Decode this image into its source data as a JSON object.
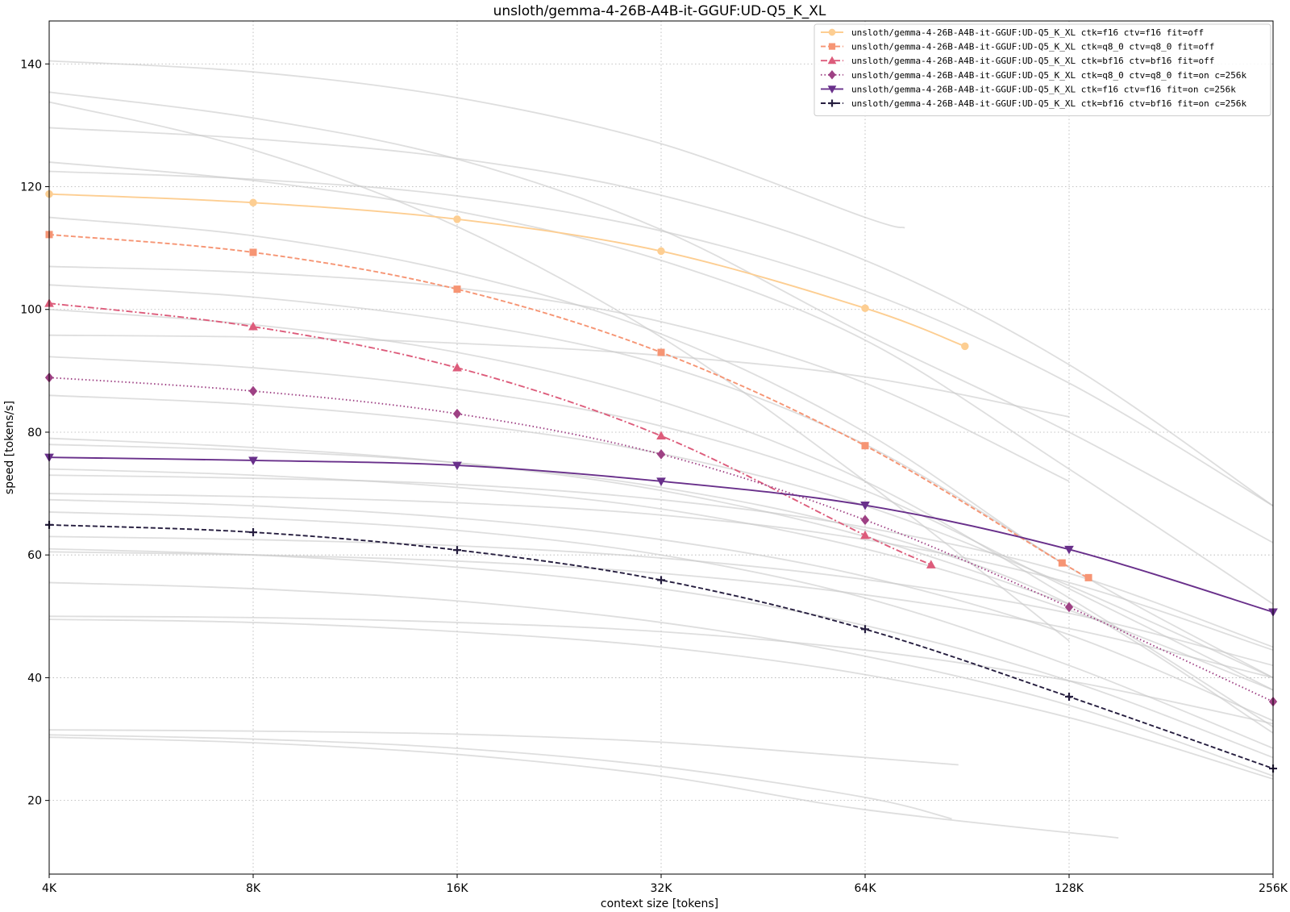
{
  "chart_data": {
    "type": "line",
    "title": "unsloth/gemma-4-26B-A4B-it-GGUF:UD-Q5_K_XL",
    "xlabel": "context size [tokens]",
    "ylabel": "speed [tokens/s]",
    "x_scale": "log2",
    "xlim": [
      4096,
      262144
    ],
    "ylim": [
      8,
      147
    ],
    "x_ticks": [
      {
        "value": 4096,
        "label": "4K"
      },
      {
        "value": 8192,
        "label": "8K"
      },
      {
        "value": 16384,
        "label": "16K"
      },
      {
        "value": 32768,
        "label": "32K"
      },
      {
        "value": 65536,
        "label": "64K"
      },
      {
        "value": 131072,
        "label": "128K"
      },
      {
        "value": 262144,
        "label": "256K"
      }
    ],
    "y_ticks": [
      20,
      40,
      60,
      80,
      100,
      120,
      140
    ],
    "grid": true,
    "legend_position": "top-right",
    "series": [
      {
        "name": "unsloth/gemma-4-26B-A4B-it-GGUF:UD-Q5_K_XL ctk=f16  ctv=f16  fit=off",
        "color": "#fdce92",
        "dash": "solid",
        "marker": "circle",
        "x": [
          4096,
          8192,
          16384,
          32768,
          65536,
          92000
        ],
        "y": [
          118.8,
          117.4,
          114.7,
          109.5,
          100.2,
          94.0
        ]
      },
      {
        "name": "unsloth/gemma-4-26B-A4B-it-GGUF:UD-Q5_K_XL ctk=q8_0 ctv=q8_0 fit=off",
        "color": "#f69574",
        "dash": "dashed",
        "marker": "square",
        "x": [
          4096,
          8192,
          16384,
          32768,
          65536,
          128000,
          140000
        ],
        "y": [
          112.2,
          109.3,
          103.3,
          93.0,
          77.8,
          58.7,
          56.3
        ]
      },
      {
        "name": "unsloth/gemma-4-26B-A4B-it-GGUF:UD-Q5_K_XL ctk=bf16 ctv=bf16 fit=off",
        "color": "#dd5c7b",
        "dash": "dashdot",
        "marker": "triangle-up",
        "x": [
          4096,
          8192,
          16384,
          32768,
          65536,
          82000
        ],
        "y": [
          101.0,
          97.2,
          90.5,
          79.4,
          63.2,
          58.4
        ]
      },
      {
        "name": "unsloth/gemma-4-26B-A4B-it-GGUF:UD-Q5_K_XL ctk=q8_0 ctv=q8_0 fit=on  c=256k",
        "color": "#9e4184",
        "dash": "dotted",
        "marker": "diamond",
        "x": [
          4096,
          8192,
          16384,
          32768,
          65536,
          131072,
          262144
        ],
        "y": [
          88.9,
          86.7,
          83.0,
          76.4,
          65.7,
          51.5,
          36.1
        ]
      },
      {
        "name": "unsloth/gemma-4-26B-A4B-it-GGUF:UD-Q5_K_XL ctk=f16  ctv=f16  fit=on  c=256k",
        "color": "#69308b",
        "dash": "solid",
        "marker": "triangle-down",
        "x": [
          4096,
          8192,
          16384,
          32768,
          65536,
          131072,
          262144
        ],
        "y": [
          75.9,
          75.4,
          74.6,
          72.0,
          68.1,
          60.9,
          50.7
        ]
      },
      {
        "name": "unsloth/gemma-4-26B-A4B-it-GGUF:UD-Q5_K_XL ctk=bf16 ctv=bf16 fit=on  c=256k",
        "color": "#261e3f",
        "dash": "dashed",
        "marker": "plus",
        "x": [
          4096,
          8192,
          16384,
          32768,
          65536,
          131072,
          262144
        ],
        "y": [
          64.9,
          63.7,
          60.8,
          55.9,
          47.9,
          36.9,
          25.2
        ]
      }
    ],
    "background_series": [
      {
        "x": [
          4096,
          8192,
          16384,
          32768,
          65536,
          75000
        ],
        "y": [
          140.5,
          138.7,
          134.5,
          127.0,
          115.0,
          113.3
        ]
      },
      {
        "x": [
          4096,
          8192,
          16384,
          32768,
          65536,
          131072,
          262144
        ],
        "y": [
          135.4,
          131.2,
          124.5,
          113.0,
          96.0,
          80.0,
          62.0
        ]
      },
      {
        "x": [
          4096,
          8192,
          16384,
          32768,
          65536,
          131072
        ],
        "y": [
          133.8,
          126.0,
          113.5,
          95.5,
          72.0,
          46.0
        ]
      },
      {
        "x": [
          4096,
          8192,
          16384,
          32768,
          65536,
          131072,
          262144
        ],
        "y": [
          129.6,
          127.8,
          124.6,
          118.6,
          108.0,
          91.0,
          68.0
        ]
      },
      {
        "x": [
          4096,
          8192,
          16384,
          32768,
          65536,
          131072,
          262144
        ],
        "y": [
          124.0,
          121.0,
          116.0,
          108.0,
          95.0,
          74.0,
          52.0
        ]
      },
      {
        "x": [
          4096,
          8192,
          16384,
          32768,
          65536,
          131072,
          262144
        ],
        "y": [
          122.5,
          121.2,
          118.5,
          112.8,
          103.0,
          88.0,
          68.0
        ]
      },
      {
        "x": [
          4096,
          8192,
          16384,
          32768,
          65536,
          131072,
          262144
        ],
        "y": [
          115.0,
          112.0,
          106.0,
          96.0,
          80.0,
          58.0,
          40.0
        ]
      },
      {
        "x": [
          4096,
          8192,
          16384,
          32768,
          65536,
          131072
        ],
        "y": [
          107.0,
          106.0,
          103.5,
          98.0,
          88.0,
          72.0
        ]
      },
      {
        "x": [
          4096,
          8192,
          16384,
          32768,
          65536,
          131072
        ],
        "y": [
          104.0,
          102.0,
          98.0,
          91.0,
          78.0,
          58.0
        ]
      },
      {
        "x": [
          4096,
          8192,
          16384,
          32768,
          65536,
          131072,
          262144
        ],
        "y": [
          100.0,
          97.5,
          93.0,
          85.0,
          72.0,
          53.0,
          32.0
        ]
      },
      {
        "x": [
          4096,
          8192,
          16384,
          32768,
          65536,
          131072
        ],
        "y": [
          95.8,
          95.5,
          94.5,
          92.5,
          89.0,
          82.5
        ]
      },
      {
        "x": [
          4096,
          8192,
          16384,
          32768,
          65536,
          131072,
          262144
        ],
        "y": [
          92.3,
          90.5,
          87.0,
          81.0,
          70.5,
          54.5,
          38.0
        ]
      },
      {
        "x": [
          4096,
          8192,
          16384,
          32768,
          65536,
          131072,
          262144
        ],
        "y": [
          86.0,
          84.5,
          81.5,
          76.5,
          68.0,
          55.0,
          40.0
        ]
      },
      {
        "x": [
          4096,
          8192,
          16384,
          32768,
          65536,
          131072
        ],
        "y": [
          79.0,
          77.5,
          75.0,
          70.5,
          63.0,
          52.0
        ]
      },
      {
        "x": [
          4096,
          8192,
          16384,
          32768,
          65536,
          131072,
          262144
        ],
        "y": [
          78.0,
          77.0,
          75.0,
          71.0,
          64.0,
          52.0,
          31.0
        ]
      },
      {
        "x": [
          4096,
          8192,
          16384,
          32768,
          65536,
          131072,
          262144
        ],
        "y": [
          74.0,
          73.0,
          71.0,
          67.5,
          61.0,
          51.0,
          38.0
        ]
      },
      {
        "x": [
          4096,
          8192,
          16384,
          32768,
          65536,
          131072,
          262144
        ],
        "y": [
          73.0,
          72.5,
          71.5,
          69.0,
          64.5,
          57.0,
          45.0
        ]
      },
      {
        "x": [
          4096,
          8192,
          16384,
          32768,
          65536,
          131072,
          262144
        ],
        "y": [
          70.0,
          69.5,
          68.5,
          66.5,
          62.5,
          55.5,
          44.5
        ]
      },
      {
        "x": [
          4096,
          8192,
          16384,
          32768,
          65536,
          131072,
          262144
        ],
        "y": [
          69.0,
          68.0,
          66.0,
          62.5,
          56.5,
          47.0,
          33.0
        ]
      },
      {
        "x": [
          4096,
          8192,
          16384,
          32768,
          65536,
          131072,
          262144
        ],
        "y": [
          67.0,
          66.0,
          64.0,
          60.0,
          53.0,
          42.0,
          28.5
        ]
      },
      {
        "x": [
          4096,
          8192,
          16384,
          32768,
          65536,
          131072,
          262144
        ],
        "y": [
          63.0,
          62.5,
          61.5,
          59.5,
          56.0,
          50.5,
          42.0
        ]
      },
      {
        "x": [
          4096,
          8192,
          16384,
          32768,
          65536,
          131072,
          262144
        ],
        "y": [
          61.0,
          60.0,
          58.0,
          54.5,
          48.5,
          39.5,
          27.0
        ]
      },
      {
        "x": [
          4096,
          8192,
          16384,
          32768,
          65536,
          131072,
          262144
        ],
        "y": [
          60.5,
          60.0,
          59.0,
          57.0,
          53.5,
          48.0,
          40.0
        ]
      },
      {
        "x": [
          4096,
          8192,
          16384,
          32768,
          65536,
          131072,
          262144
        ],
        "y": [
          55.5,
          54.5,
          52.5,
          49.0,
          43.5,
          35.5,
          24.0
        ]
      },
      {
        "x": [
          4096,
          8192,
          16384,
          32768,
          65536,
          131072,
          262144
        ],
        "y": [
          50.0,
          49.8,
          49.0,
          47.5,
          44.5,
          39.5,
          32.5
        ]
      },
      {
        "x": [
          4096,
          8192,
          16384,
          32768,
          65536,
          131072,
          262144
        ],
        "y": [
          49.5,
          49.0,
          47.5,
          45.0,
          40.5,
          33.5,
          23.5
        ]
      },
      {
        "x": [
          4096,
          8192,
          16384,
          32768,
          65536,
          90000
        ],
        "y": [
          31.5,
          31.3,
          30.8,
          29.5,
          27.0,
          25.8
        ]
      },
      {
        "x": [
          4096,
          8192,
          16384,
          32768,
          65536,
          88000
        ],
        "y": [
          30.7,
          30.0,
          28.5,
          25.5,
          20.5,
          17.0
        ]
      },
      {
        "x": [
          4096,
          8192,
          16384,
          32768,
          65536,
          155000
        ],
        "y": [
          30.3,
          29.4,
          27.5,
          24.0,
          18.5,
          13.9
        ]
      }
    ]
  }
}
